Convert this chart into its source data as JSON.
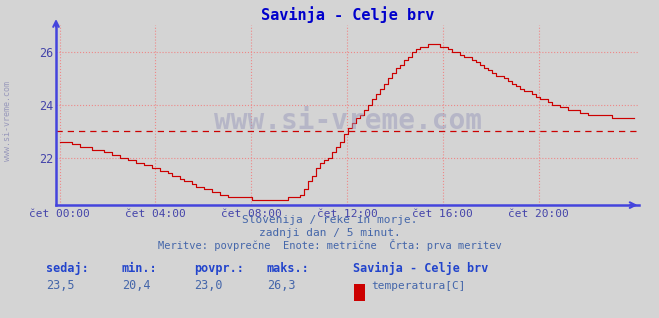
{
  "title": "Savinja - Celje brv",
  "title_color": "#0000cc",
  "bg_color": "#d4d4d4",
  "plot_bg_color": "#d4d4d4",
  "line_color": "#cc0000",
  "avg_line_color": "#cc0000",
  "avg_value": 23.0,
  "y_min": 20.2,
  "y_max": 27.0,
  "y_ticks": [
    22,
    24,
    26
  ],
  "x_ticks": [
    0,
    4,
    8,
    12,
    16,
    20
  ],
  "x_tick_labels": [
    "čet 00:00",
    "čet 04:00",
    "čet 08:00",
    "čet 12:00",
    "čet 16:00",
    "čet 20:00"
  ],
  "xlabel_color": "#4444aa",
  "ylabel_color": "#4444aa",
  "grid_color": "#ee8888",
  "axis_color": "#4444dd",
  "watermark": "www.si-vreme.com",
  "watermark_color": "#9999bb",
  "side_label": "www.si-vreme.com",
  "side_label_color": "#9999bb",
  "subtitle1": "Slovenija / reke in morje.",
  "subtitle2": "zadnji dan / 5 minut.",
  "subtitle3": "Meritve: povprečne  Enote: metrične  Črta: prva meritev",
  "subtitle_color": "#4466aa",
  "legend_title": "Savinja - Celje brv",
  "legend_label": "temperatura[C]",
  "legend_color": "#cc0000",
  "sedaj_label": "sedaj:",
  "min_label": "min.:",
  "povpr_label": "povpr.:",
  "maks_label": "maks.:",
  "sedaj_val": "23,5",
  "min_val": "20,4",
  "povpr_val": "23,0",
  "maks_val": "26,3",
  "stats_label_color": "#2244cc",
  "stats_val_color": "#4466aa"
}
